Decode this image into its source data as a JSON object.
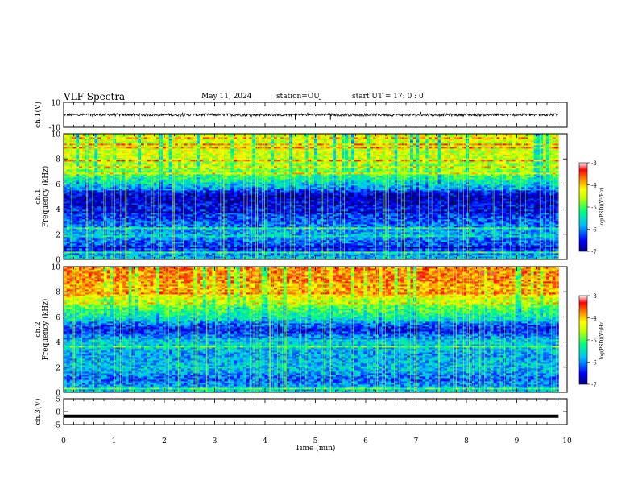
{
  "header": {
    "title": "VLF Spectra",
    "date": "May 11, 2024",
    "station": "station=OUJ",
    "start": "start  UT  =   17: 0  : 0"
  },
  "colors": {
    "colormap": [
      "#00007f",
      "#0000ff",
      "#00bfff",
      "#00ff7f",
      "#bfff00",
      "#ffff00",
      "#ff7f00",
      "#ff0000",
      "#ffc0c0",
      "#ffffff"
    ]
  },
  "chart_data": [
    {
      "type": "line",
      "panel": "ch1-waveform",
      "ylabel": "ch.1(V)",
      "ylim": [
        -10,
        10
      ],
      "y_ticks": [
        "10",
        "-10"
      ],
      "baseline": 0,
      "description_values": {
        "typical_amplitude": 1.5,
        "spike_times_min": [
          1.5,
          4.6,
          5.3
        ]
      }
    },
    {
      "type": "heatmap",
      "panel": "ch1-spectrogram",
      "ylabel": "Frequency (kHz)",
      "ylabel_prefix": "ch.1",
      "ylim": [
        0,
        10
      ],
      "y_ticks": [
        "0",
        "2",
        "4",
        "6",
        "8",
        "10"
      ],
      "xlim": [
        0,
        10
      ],
      "data_end_min": 9.83,
      "colorbar": {
        "label": "log(PSD)(V²/Hz)",
        "range": [
          -7,
          -3
        ],
        "ticks": [
          "-3",
          "-4",
          "-5",
          "-6",
          "-7"
        ]
      },
      "mean_logpsd_by_freq_khz": {
        "0": -5.6,
        "1": -6.4,
        "2": -5.8,
        "3": -6.2,
        "4": -6.5,
        "5": -6.8,
        "6": -5.8,
        "7": -5.0,
        "8": -4.7,
        "9": -4.6,
        "10": -4.6
      }
    },
    {
      "type": "heatmap",
      "panel": "ch2-spectrogram",
      "ylabel": "Frequency (kHz)",
      "ylabel_prefix": "ch.2",
      "ylim": [
        0,
        10
      ],
      "y_ticks": [
        "0",
        "2",
        "4",
        "6",
        "8",
        "10"
      ],
      "xlim": [
        0,
        10
      ],
      "data_end_min": 9.83,
      "colorbar": {
        "label": "log(PSD)(V²/Hz)",
        "range": [
          -7,
          -3
        ],
        "ticks": [
          "-3",
          "-4",
          "-5",
          "-6",
          "-7"
        ]
      },
      "mean_logpsd_by_freq_khz": {
        "0": -5.6,
        "1": -6.2,
        "2": -5.7,
        "3": -5.9,
        "4": -5.6,
        "5": -6.5,
        "6": -5.6,
        "7": -5.0,
        "8": -4.1,
        "9": -3.9,
        "10": -3.9
      }
    },
    {
      "type": "line",
      "panel": "ch3-waveform",
      "ylabel": "ch.3(V)",
      "ylim": [
        -5,
        5
      ],
      "y_ticks": [
        "5",
        "0",
        "-5"
      ],
      "baseline": -1.8
    }
  ],
  "xaxis": {
    "label": "Time  (min)",
    "xlim": [
      0,
      10
    ],
    "ticks": [
      "0",
      "1",
      "2",
      "3",
      "4",
      "5",
      "6",
      "7",
      "8",
      "9",
      "10"
    ]
  }
}
